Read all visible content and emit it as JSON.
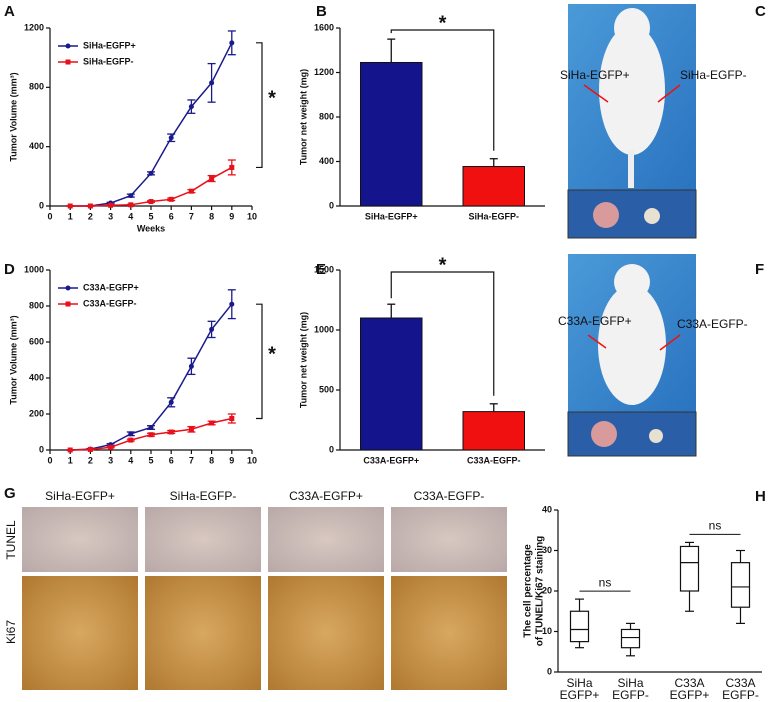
{
  "panel_letters": [
    "A",
    "B",
    "C",
    "D",
    "E",
    "F",
    "G",
    "H"
  ],
  "chart_data": [
    {
      "type": "line",
      "xlabel": "Weeks",
      "ylabel": "Tumor Volume (mm³)",
      "x": [
        1,
        2,
        3,
        4,
        5,
        6,
        7,
        8,
        9
      ],
      "xlim": [
        0,
        10
      ],
      "xticks": [
        0,
        1,
        2,
        3,
        4,
        5,
        6,
        7,
        8,
        9,
        10
      ],
      "ylim": [
        0,
        1200
      ],
      "yticks": [
        0,
        400,
        800,
        1200
      ],
      "annotation": "*",
      "series": [
        {
          "name": "SiHa-EGFP+",
          "color": "#1a1a8c",
          "values": [
            0,
            0,
            20,
            70,
            220,
            460,
            670,
            830,
            1100
          ],
          "errors": [
            0,
            0,
            5,
            10,
            10,
            25,
            45,
            130,
            80
          ]
        },
        {
          "name": "SiHa-EGFP-",
          "color": "#e8101a",
          "values": [
            0,
            0,
            5,
            8,
            30,
            45,
            100,
            185,
            260
          ],
          "errors": [
            0,
            0,
            2,
            3,
            5,
            8,
            10,
            20,
            50
          ]
        }
      ]
    },
    {
      "type": "bar",
      "ylabel": "Tumor net weight (mg)",
      "categories": [
        "SiHa-EGFP+",
        "SiHa-EGFP-"
      ],
      "values": [
        1290,
        355
      ],
      "errors": [
        210,
        70
      ],
      "colors": [
        "#14148c",
        "#f01010"
      ],
      "ylim": [
        0,
        1600
      ],
      "yticks": [
        0,
        400,
        800,
        1200,
        1600
      ],
      "annotation": "*"
    },
    {
      "type": "line",
      "ylabel": "Tumor Volume (mm³)",
      "x": [
        1,
        2,
        3,
        4,
        5,
        6,
        7,
        8,
        9
      ],
      "xlim": [
        0,
        10
      ],
      "xticks": [
        0,
        1,
        2,
        3,
        4,
        5,
        6,
        7,
        8,
        9,
        10
      ],
      "ylim": [
        0,
        1000
      ],
      "yticks": [
        0,
        200,
        400,
        600,
        800,
        1000
      ],
      "annotation": "*",
      "series": [
        {
          "name": "C33A-EGFP+",
          "color": "#1a1a8c",
          "values": [
            0,
            5,
            30,
            90,
            125,
            265,
            465,
            670,
            810
          ],
          "errors": [
            0,
            3,
            5,
            10,
            10,
            25,
            45,
            45,
            80
          ]
        },
        {
          "name": "C33A-EGFP-",
          "color": "#e8101a",
          "values": [
            0,
            3,
            15,
            55,
            85,
            100,
            115,
            150,
            175
          ],
          "errors": [
            0,
            2,
            3,
            5,
            8,
            8,
            15,
            10,
            25
          ]
        }
      ]
    },
    {
      "type": "bar",
      "ylabel": "Tumor net weight (mg)",
      "categories": [
        "C33A-EGFP+",
        "C33A-EGFP-"
      ],
      "values": [
        1100,
        320
      ],
      "errors": [
        115,
        65
      ],
      "colors": [
        "#14148c",
        "#f01010"
      ],
      "ylim": [
        0,
        1500
      ],
      "yticks": [
        0,
        500,
        1000,
        1500
      ],
      "annotation": "*"
    },
    {
      "type": "box",
      "ylabel": [
        "The cell percentage",
        "of TUNEL/Ki67 staining"
      ],
      "categories": [
        [
          "SiHa",
          "EGFP+"
        ],
        [
          "SiHa",
          "EGFP-"
        ],
        [
          "C33A",
          "EGFP+"
        ],
        [
          "C33A",
          "EGFP-"
        ]
      ],
      "boxes": [
        {
          "min": 6,
          "q1": 7.5,
          "median": 10.5,
          "q3": 15,
          "max": 18
        },
        {
          "min": 4,
          "q1": 6,
          "median": 8.5,
          "q3": 10.5,
          "max": 12
        },
        {
          "min": 15,
          "q1": 20,
          "median": 27,
          "q3": 31,
          "max": 32
        },
        {
          "min": 12,
          "q1": 16,
          "median": 21,
          "q3": 27,
          "max": 30
        }
      ],
      "ylim": [
        0,
        40
      ],
      "yticks": [
        0,
        10,
        20,
        30,
        40
      ],
      "annotations": [
        "ns",
        "ns"
      ]
    }
  ],
  "photo_C": {
    "left_label": "SiHa-EGFP+",
    "right_label": "SiHa-EGFP-"
  },
  "photo_F": {
    "left_label": "C33A-EGFP+",
    "right_label": "C33A-EGFP-"
  },
  "panel_G": {
    "columns": [
      "SiHa-EGFP+",
      "SiHa-EGFP-",
      "C33A-EGFP+",
      "C33A-EGFP-"
    ],
    "rows": [
      "TUNEL",
      "Ki67"
    ]
  }
}
